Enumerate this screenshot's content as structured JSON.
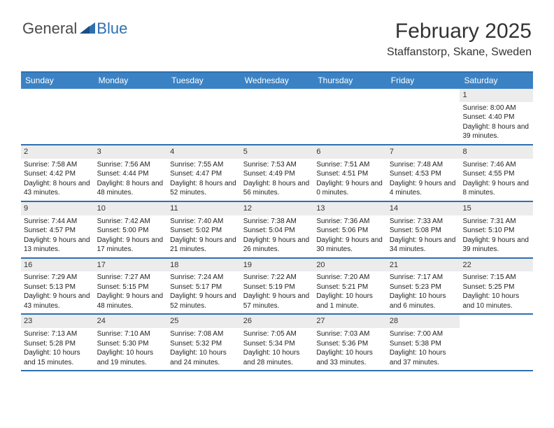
{
  "logo": {
    "general": "General",
    "blue": "Blue"
  },
  "title": "February 2025",
  "location": "Staffanstorp, Skane, Sweden",
  "dayHeaders": [
    "Sunday",
    "Monday",
    "Tuesday",
    "Wednesday",
    "Thursday",
    "Friday",
    "Saturday"
  ],
  "colors": {
    "headerBar": "#3b82c4",
    "ruleLine": "#2f6fb0",
    "dayNumBg": "#ececec",
    "text": "#222222",
    "logoBlue": "#2f6fb0"
  },
  "weeks": [
    [
      {
        "n": "",
        "sunrise": "",
        "sunset": "",
        "daylight": ""
      },
      {
        "n": "",
        "sunrise": "",
        "sunset": "",
        "daylight": ""
      },
      {
        "n": "",
        "sunrise": "",
        "sunset": "",
        "daylight": ""
      },
      {
        "n": "",
        "sunrise": "",
        "sunset": "",
        "daylight": ""
      },
      {
        "n": "",
        "sunrise": "",
        "sunset": "",
        "daylight": ""
      },
      {
        "n": "",
        "sunrise": "",
        "sunset": "",
        "daylight": ""
      },
      {
        "n": "1",
        "sunrise": "Sunrise: 8:00 AM",
        "sunset": "Sunset: 4:40 PM",
        "daylight": "Daylight: 8 hours and 39 minutes."
      }
    ],
    [
      {
        "n": "2",
        "sunrise": "Sunrise: 7:58 AM",
        "sunset": "Sunset: 4:42 PM",
        "daylight": "Daylight: 8 hours and 43 minutes."
      },
      {
        "n": "3",
        "sunrise": "Sunrise: 7:56 AM",
        "sunset": "Sunset: 4:44 PM",
        "daylight": "Daylight: 8 hours and 48 minutes."
      },
      {
        "n": "4",
        "sunrise": "Sunrise: 7:55 AM",
        "sunset": "Sunset: 4:47 PM",
        "daylight": "Daylight: 8 hours and 52 minutes."
      },
      {
        "n": "5",
        "sunrise": "Sunrise: 7:53 AM",
        "sunset": "Sunset: 4:49 PM",
        "daylight": "Daylight: 8 hours and 56 minutes."
      },
      {
        "n": "6",
        "sunrise": "Sunrise: 7:51 AM",
        "sunset": "Sunset: 4:51 PM",
        "daylight": "Daylight: 9 hours and 0 minutes."
      },
      {
        "n": "7",
        "sunrise": "Sunrise: 7:48 AM",
        "sunset": "Sunset: 4:53 PM",
        "daylight": "Daylight: 9 hours and 4 minutes."
      },
      {
        "n": "8",
        "sunrise": "Sunrise: 7:46 AM",
        "sunset": "Sunset: 4:55 PM",
        "daylight": "Daylight: 9 hours and 8 minutes."
      }
    ],
    [
      {
        "n": "9",
        "sunrise": "Sunrise: 7:44 AM",
        "sunset": "Sunset: 4:57 PM",
        "daylight": "Daylight: 9 hours and 13 minutes."
      },
      {
        "n": "10",
        "sunrise": "Sunrise: 7:42 AM",
        "sunset": "Sunset: 5:00 PM",
        "daylight": "Daylight: 9 hours and 17 minutes."
      },
      {
        "n": "11",
        "sunrise": "Sunrise: 7:40 AM",
        "sunset": "Sunset: 5:02 PM",
        "daylight": "Daylight: 9 hours and 21 minutes."
      },
      {
        "n": "12",
        "sunrise": "Sunrise: 7:38 AM",
        "sunset": "Sunset: 5:04 PM",
        "daylight": "Daylight: 9 hours and 26 minutes."
      },
      {
        "n": "13",
        "sunrise": "Sunrise: 7:36 AM",
        "sunset": "Sunset: 5:06 PM",
        "daylight": "Daylight: 9 hours and 30 minutes."
      },
      {
        "n": "14",
        "sunrise": "Sunrise: 7:33 AM",
        "sunset": "Sunset: 5:08 PM",
        "daylight": "Daylight: 9 hours and 34 minutes."
      },
      {
        "n": "15",
        "sunrise": "Sunrise: 7:31 AM",
        "sunset": "Sunset: 5:10 PM",
        "daylight": "Daylight: 9 hours and 39 minutes."
      }
    ],
    [
      {
        "n": "16",
        "sunrise": "Sunrise: 7:29 AM",
        "sunset": "Sunset: 5:13 PM",
        "daylight": "Daylight: 9 hours and 43 minutes."
      },
      {
        "n": "17",
        "sunrise": "Sunrise: 7:27 AM",
        "sunset": "Sunset: 5:15 PM",
        "daylight": "Daylight: 9 hours and 48 minutes."
      },
      {
        "n": "18",
        "sunrise": "Sunrise: 7:24 AM",
        "sunset": "Sunset: 5:17 PM",
        "daylight": "Daylight: 9 hours and 52 minutes."
      },
      {
        "n": "19",
        "sunrise": "Sunrise: 7:22 AM",
        "sunset": "Sunset: 5:19 PM",
        "daylight": "Daylight: 9 hours and 57 minutes."
      },
      {
        "n": "20",
        "sunrise": "Sunrise: 7:20 AM",
        "sunset": "Sunset: 5:21 PM",
        "daylight": "Daylight: 10 hours and 1 minute."
      },
      {
        "n": "21",
        "sunrise": "Sunrise: 7:17 AM",
        "sunset": "Sunset: 5:23 PM",
        "daylight": "Daylight: 10 hours and 6 minutes."
      },
      {
        "n": "22",
        "sunrise": "Sunrise: 7:15 AM",
        "sunset": "Sunset: 5:25 PM",
        "daylight": "Daylight: 10 hours and 10 minutes."
      }
    ],
    [
      {
        "n": "23",
        "sunrise": "Sunrise: 7:13 AM",
        "sunset": "Sunset: 5:28 PM",
        "daylight": "Daylight: 10 hours and 15 minutes."
      },
      {
        "n": "24",
        "sunrise": "Sunrise: 7:10 AM",
        "sunset": "Sunset: 5:30 PM",
        "daylight": "Daylight: 10 hours and 19 minutes."
      },
      {
        "n": "25",
        "sunrise": "Sunrise: 7:08 AM",
        "sunset": "Sunset: 5:32 PM",
        "daylight": "Daylight: 10 hours and 24 minutes."
      },
      {
        "n": "26",
        "sunrise": "Sunrise: 7:05 AM",
        "sunset": "Sunset: 5:34 PM",
        "daylight": "Daylight: 10 hours and 28 minutes."
      },
      {
        "n": "27",
        "sunrise": "Sunrise: 7:03 AM",
        "sunset": "Sunset: 5:36 PM",
        "daylight": "Daylight: 10 hours and 33 minutes."
      },
      {
        "n": "28",
        "sunrise": "Sunrise: 7:00 AM",
        "sunset": "Sunset: 5:38 PM",
        "daylight": "Daylight: 10 hours and 37 minutes."
      },
      {
        "n": "",
        "sunrise": "",
        "sunset": "",
        "daylight": ""
      }
    ]
  ]
}
